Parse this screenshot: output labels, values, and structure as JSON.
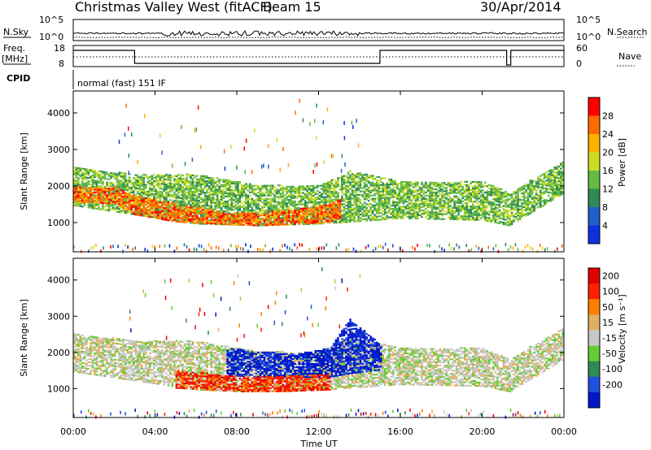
{
  "header": {
    "title": "Christmas Valley West (fitACF)",
    "beam": "Beam 15",
    "date": "30/Apr/2014"
  },
  "ops": {
    "nsky_label": "N.Sky",
    "nsky_ticks": [
      "10^5",
      "10^0"
    ],
    "nsearch_label": "N.Search",
    "nsearch_ticks": [
      "10^5",
      "10^0"
    ],
    "freq_label_1": "Freq.",
    "freq_label_2": "[MHz]",
    "freq_ticks": [
      "18",
      "8"
    ],
    "nave_label": "Nave",
    "nave_ticks": [
      "60",
      "0"
    ],
    "cpid_label": "CPID",
    "cpid_text": "normal (fast) 151 IF"
  },
  "chart_data": [
    {
      "type": "heatmap",
      "name": "power",
      "ylabel": "Slant Range [km]",
      "yticks": [
        "1000",
        "2000",
        "3000",
        "4000"
      ],
      "ylim": [
        200,
        4600
      ],
      "xlim": [
        0,
        24
      ],
      "colorbar_label": "Power [dB]",
      "colorbar_ticks": [
        "4",
        "8",
        "12",
        "16",
        "20",
        "24",
        "28"
      ],
      "colors": [
        "#1030e0",
        "#2060c8",
        "#2e8b57",
        "#66bb44",
        "#ccdd22",
        "#ffb000",
        "#ff6a00",
        "#ff0000"
      ],
      "bands": [
        {
          "x": [
            0,
            3,
            6,
            9,
            12,
            13.5,
            16,
            20,
            21.3,
            24
          ],
          "lo": [
            1450,
            1200,
            950,
            900,
            950,
            1000,
            1100,
            1050,
            900,
            1800
          ],
          "hi": [
            2500,
            2300,
            2300,
            2000,
            2000,
            2400,
            2100,
            2100,
            1800,
            2700
          ],
          "level": 3
        },
        {
          "x": [
            0,
            2,
            3,
            5,
            7,
            9,
            11,
            12.5,
            13
          ],
          "lo": [
            1550,
            1500,
            1200,
            1000,
            950,
            900,
            950,
            1000,
            1100
          ],
          "hi": [
            2000,
            1950,
            1700,
            1500,
            1300,
            1250,
            1350,
            1500,
            1600
          ],
          "level": 6
        }
      ]
    },
    {
      "type": "heatmap",
      "name": "velocity",
      "ylabel": "Slant Range [km]",
      "yticks": [
        "1000",
        "2000",
        "3000",
        "4000"
      ],
      "ylim": [
        200,
        4600
      ],
      "xlim": [
        0,
        24
      ],
      "colorbar_label": "Velocity [m s⁻¹]",
      "colorbar_ticks": [
        "200",
        "100",
        "50",
        "15",
        "-15",
        "-50",
        "-100",
        "-200"
      ],
      "colors": [
        "#0018c8",
        "#2050e0",
        "#2e8b57",
        "#66cc33",
        "#c8c8c8",
        "#e0b060",
        "#ff8000",
        "#ff2000",
        "#e00000"
      ],
      "bands": [
        {
          "x": [
            0,
            3,
            6,
            9,
            12,
            13.5,
            16,
            20,
            21.3,
            24
          ],
          "lo": [
            1450,
            1200,
            950,
            900,
            950,
            1000,
            1100,
            1050,
            900,
            1800
          ],
          "hi": [
            2500,
            2300,
            2300,
            2000,
            2000,
            2400,
            2100,
            2100,
            1800,
            2700
          ],
          "level": 4
        },
        {
          "x": [
            7.5,
            9,
            11,
            12.5,
            13.5,
            15
          ],
          "lo": [
            1350,
            1300,
            1300,
            1300,
            1400,
            1500
          ],
          "hi": [
            2100,
            2000,
            1950,
            2100,
            2900,
            2200
          ],
          "level": 0
        },
        {
          "x": [
            5,
            6.5,
            8,
            10,
            12.5
          ],
          "lo": [
            1000,
            950,
            900,
            900,
            950
          ],
          "hi": [
            1500,
            1400,
            1350,
            1350,
            1400
          ],
          "level": 7
        }
      ]
    }
  ],
  "time_axis": {
    "xlabel": "Time UT",
    "ticks": [
      "00:00",
      "04:00",
      "08:00",
      "12:00",
      "16:00",
      "20:00",
      "00:00"
    ]
  }
}
